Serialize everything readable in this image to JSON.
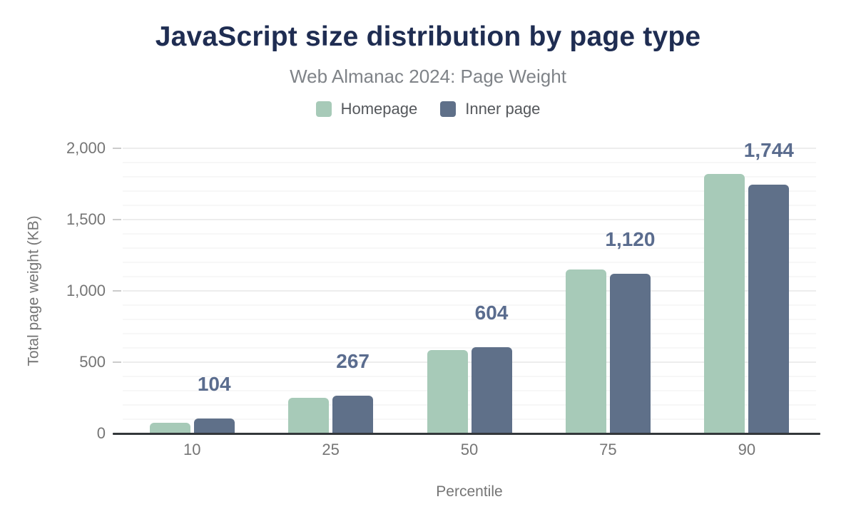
{
  "chart_data": {
    "type": "bar",
    "title": "JavaScript size distribution by page type",
    "subtitle": "Web Almanac 2024: Page Weight",
    "categories": [
      "10",
      "25",
      "50",
      "75",
      "90"
    ],
    "series": [
      {
        "name": "Homepage",
        "color": "#a7cab8",
        "values": [
          75,
          250,
          585,
          1150,
          1820
        ]
      },
      {
        "name": "Inner page",
        "color": "#5f7089",
        "values": [
          104,
          267,
          604,
          1120,
          1744
        ],
        "data_labels": [
          "104",
          "267",
          "604",
          "1,120",
          "1,744"
        ]
      }
    ],
    "xlabel": "Percentile",
    "ylabel": "Total page weight (KB)",
    "ylim": [
      0,
      2000
    ],
    "yticks": [
      {
        "value": 0,
        "label": "0"
      },
      {
        "value": 500,
        "label": "500"
      },
      {
        "value": 1000,
        "label": "1,000"
      },
      {
        "value": 1500,
        "label": "1,500"
      },
      {
        "value": 2000,
        "label": "2,000"
      }
    ],
    "minor_grid_step": 100,
    "major_grid_step": 500,
    "grid": true,
    "legend_position": "top",
    "data_label_series": "Inner page",
    "data_label_color": "#5a6c8e"
  }
}
